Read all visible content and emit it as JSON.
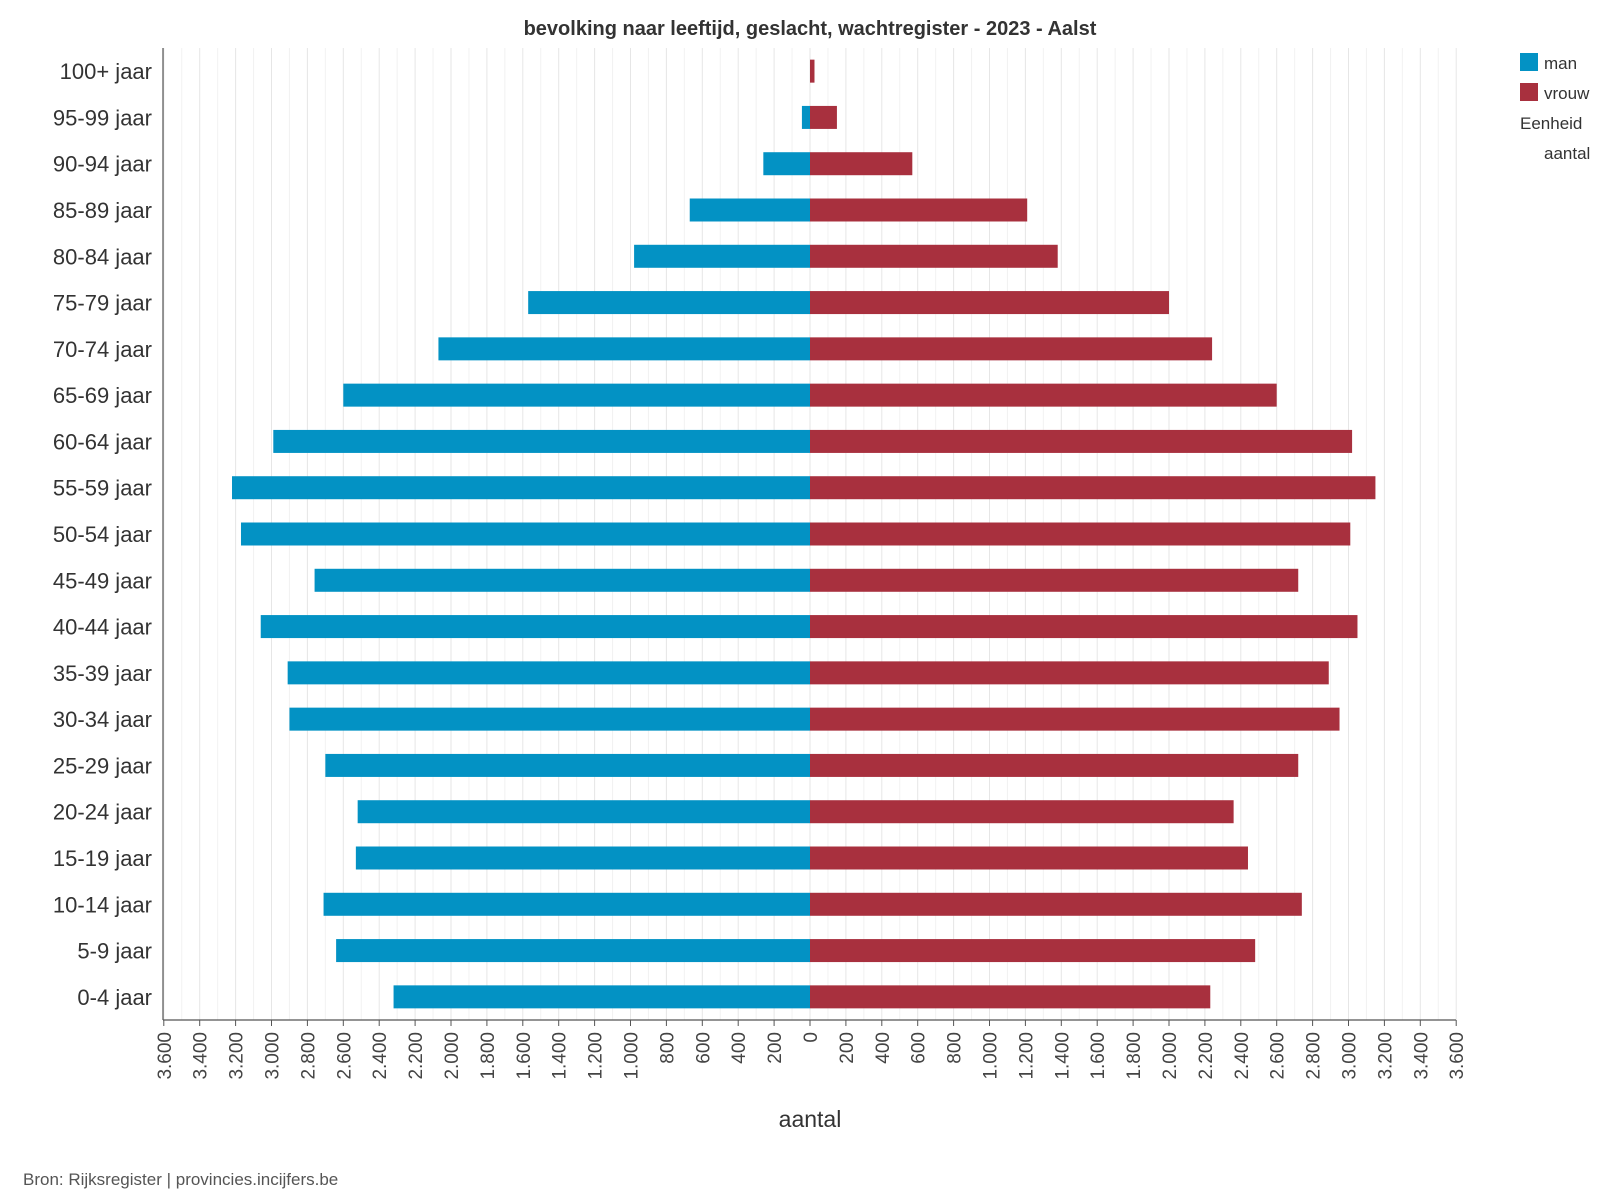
{
  "chart_data": {
    "type": "bar",
    "orientation": "horizontal-pyramid",
    "title": "bevolking naar leeftijd, geslacht, wachtregister - 2023 - Aalst",
    "xlabel": "aantal",
    "ylabel": "",
    "xlim": [
      -3600,
      3600
    ],
    "grid": true,
    "categories": [
      "0-4 jaar",
      "5-9 jaar",
      "10-14 jaar",
      "15-19 jaar",
      "20-24 jaar",
      "25-29 jaar",
      "30-34 jaar",
      "35-39 jaar",
      "40-44 jaar",
      "45-49 jaar",
      "50-54 jaar",
      "55-59 jaar",
      "60-64 jaar",
      "65-69 jaar",
      "70-74 jaar",
      "75-79 jaar",
      "80-84 jaar",
      "85-89 jaar",
      "90-94 jaar",
      "95-99 jaar",
      "100+ jaar"
    ],
    "series": [
      {
        "name": "man",
        "color": "#0392C4",
        "values": [
          2320,
          2640,
          2710,
          2530,
          2520,
          2700,
          2900,
          2910,
          3060,
          2760,
          3170,
          3220,
          2990,
          2600,
          2070,
          1570,
          980,
          670,
          260,
          45,
          0
        ]
      },
      {
        "name": "vrouw",
        "color": "#A8303E",
        "values": [
          2230,
          2480,
          2740,
          2440,
          2360,
          2720,
          2950,
          2890,
          3050,
          2720,
          3010,
          3150,
          3020,
          2600,
          2240,
          2000,
          1380,
          1210,
          570,
          150,
          25
        ]
      }
    ],
    "tick_values": [
      -3600,
      -3400,
      -3200,
      -3000,
      -2800,
      -2600,
      -2400,
      -2200,
      -2000,
      -1800,
      -1600,
      -1400,
      -1200,
      -1000,
      -800,
      -600,
      -400,
      -200,
      0,
      200,
      400,
      600,
      800,
      1000,
      1200,
      1400,
      1600,
      1800,
      2000,
      2200,
      2400,
      2600,
      2800,
      3000,
      3200,
      3400,
      3600
    ],
    "tick_labels": [
      "3.600",
      "3.400",
      "3.200",
      "3.000",
      "2.800",
      "2.600",
      "2.400",
      "2.200",
      "2.000",
      "1.800",
      "1.600",
      "1.400",
      "1.200",
      "1.000",
      "800",
      "600",
      "400",
      "200",
      "0",
      "200",
      "400",
      "600",
      "800",
      "1.000",
      "1.200",
      "1.400",
      "1.600",
      "1.800",
      "2.000",
      "2.200",
      "2.400",
      "2.600",
      "2.800",
      "3.000",
      "3.200",
      "3.400",
      "3.600"
    ]
  },
  "legend": {
    "items": [
      {
        "label": "man",
        "color": "#0392C4"
      },
      {
        "label": "vrouw",
        "color": "#A8303E"
      }
    ],
    "unit_heading": "Eenheid",
    "unit_value": "aantal"
  },
  "source": "Bron: Rijksregister | provincies.incijfers.be"
}
